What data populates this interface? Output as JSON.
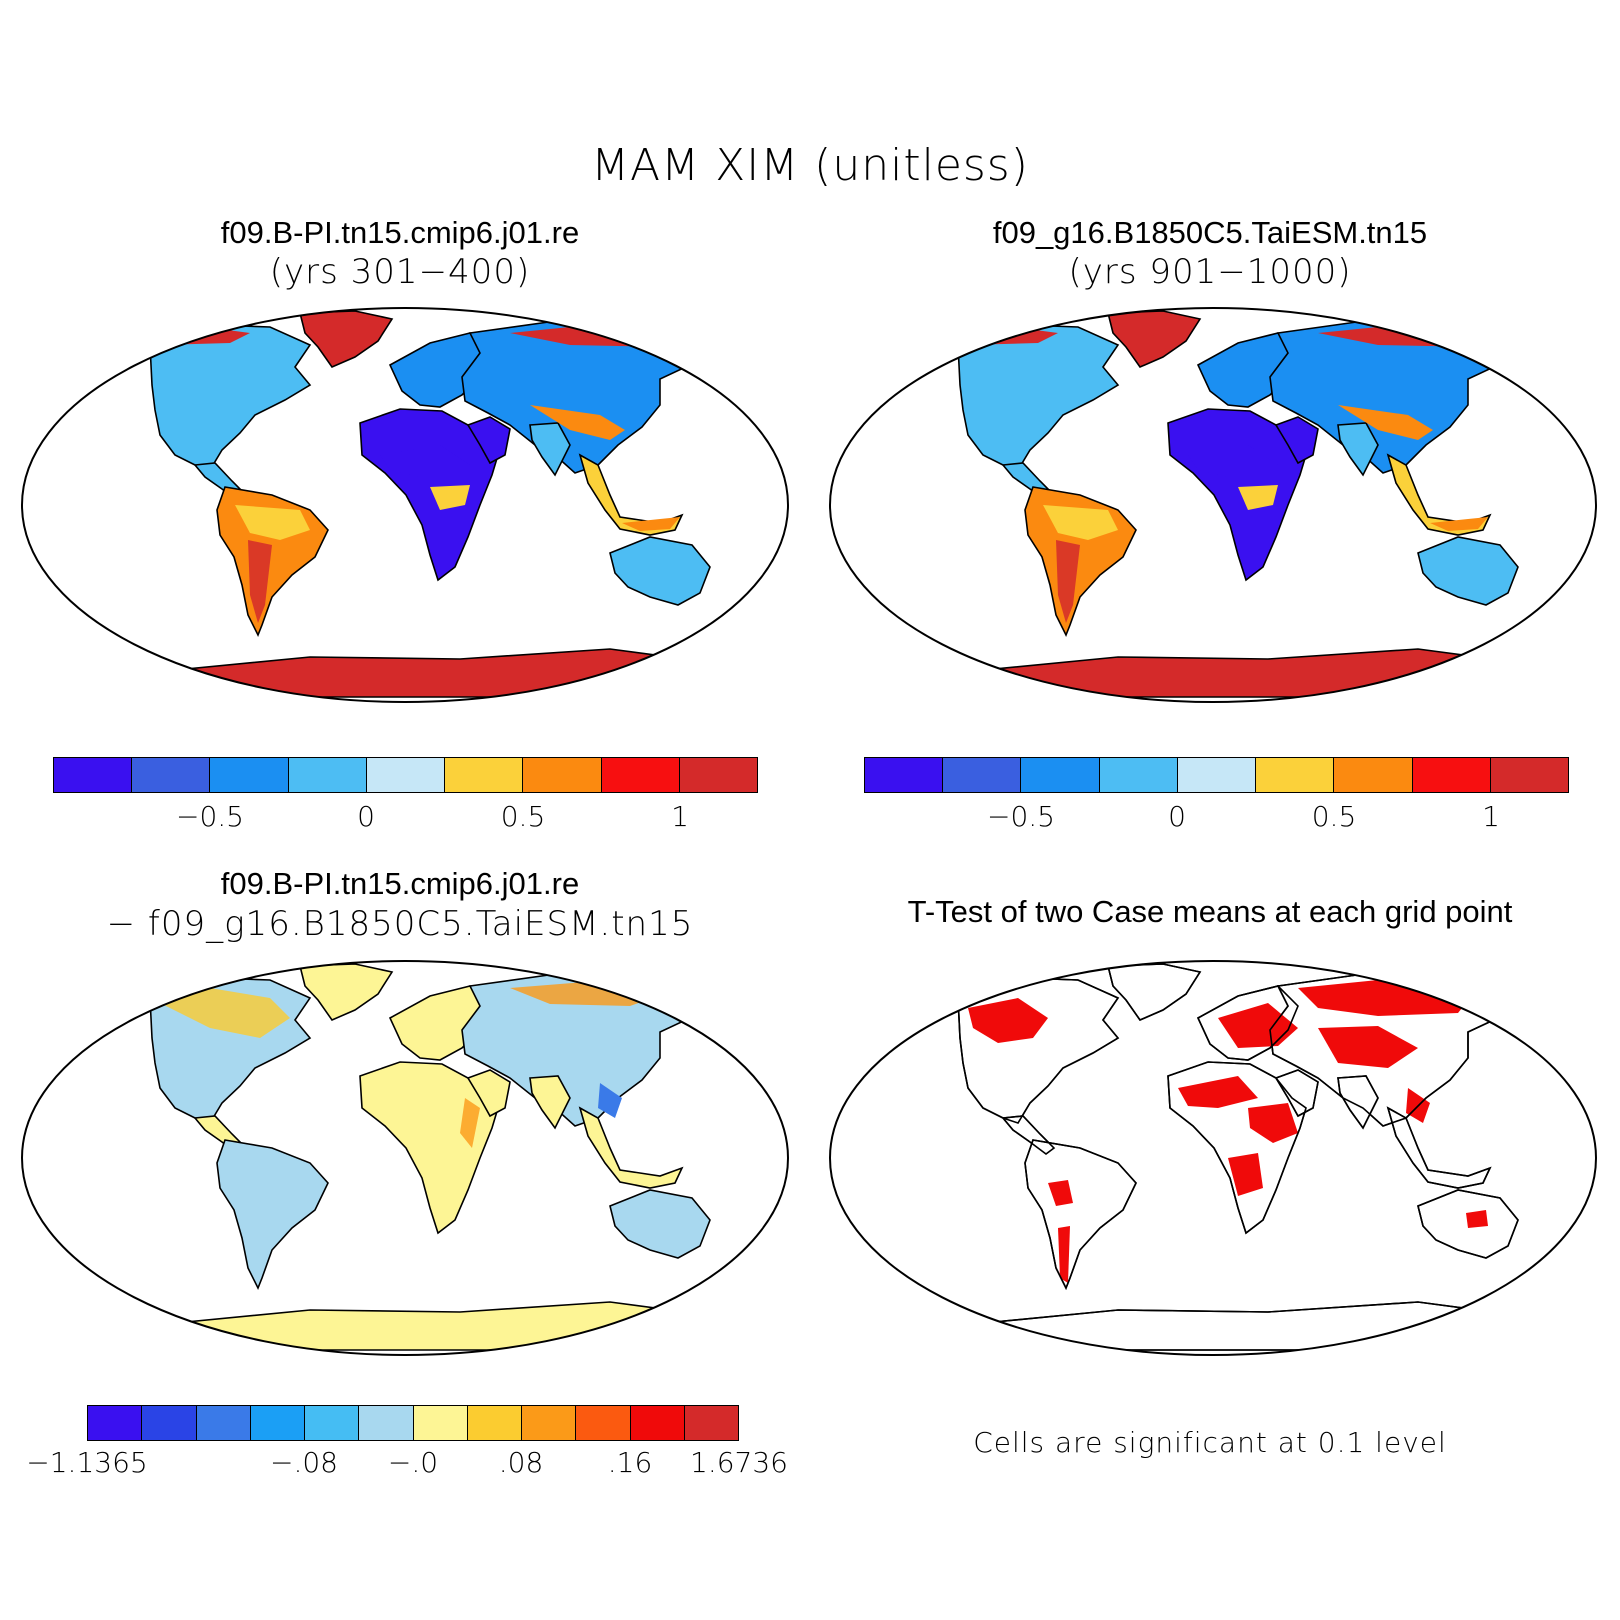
{
  "figure": {
    "title": "MAM XIM (unitless)"
  },
  "panels": {
    "top_left": {
      "title": "f09.B-PI.tn15.cmip6.j01.re",
      "subtitle": "(yrs 301−400)"
    },
    "top_right": {
      "title": "f09_g16.B1850C5.TaiESM.tn15",
      "subtitle": "(yrs 901−1000)"
    },
    "bottom_left": {
      "title": "f09.B-PI.tn15.cmip6.j01.re",
      "subtitle": "− f09_g16.B1850C5.TaiESM.tn15"
    },
    "bottom_right": {
      "title": "T-Test of two Case means at each grid point",
      "note": "Cells are significant at 0.1 level"
    }
  },
  "colorbars": {
    "mean": {
      "colors": [
        "#3a10f0",
        "#3a5fe0",
        "#1b8ff2",
        "#4dbdf3",
        "#c6e7f7",
        "#fbd13a",
        "#fb8a10",
        "#f70f10",
        "#d42a2a"
      ],
      "labels": [
        "−0.5",
        "0",
        "0.5",
        "1"
      ]
    },
    "diff": {
      "colors": [
        "#3a10f0",
        "#2a44e6",
        "#3a7ae8",
        "#1b9ff5",
        "#45bdf3",
        "#a8d8ef",
        "#fdf595",
        "#fbcc30",
        "#fb9a18",
        "#fb5a10",
        "#f00a0a",
        "#d42a2a"
      ],
      "labels": [
        "−1.1365",
        "−.08",
        "−.0",
        ".08",
        ".16",
        "1.6736"
      ]
    }
  },
  "map_colors": {
    "land_wet": "#3a10f0",
    "land_mid": "#4dbdf3",
    "land_low": "#1b8ff2",
    "arid": "#fbd13a",
    "hot": "#fb8a10",
    "polar": "#d42a2a",
    "diff_base": "#fdf595",
    "diff_cool": "#a8d8ef",
    "significant": "#f00a0a"
  }
}
